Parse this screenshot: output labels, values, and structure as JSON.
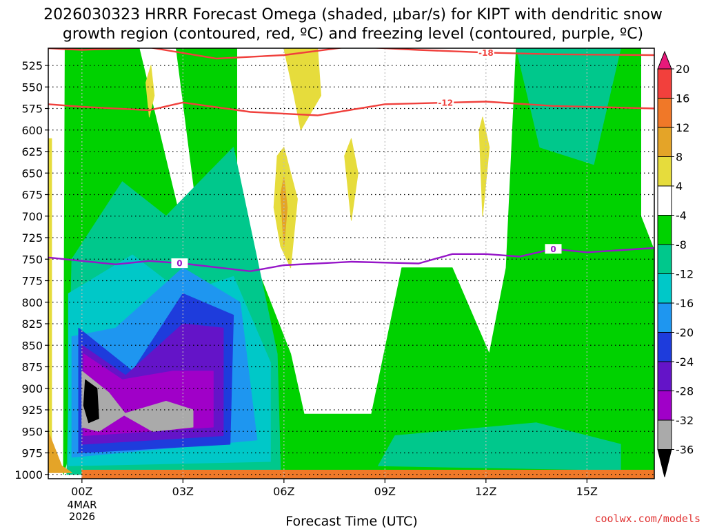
{
  "chart_data": {
    "type": "heatmap",
    "title_line1": "2026030323 HRRR Forecast Omega (shaded, μbar/s) for KIPT with dendritic snow",
    "title_line2": "growth region (contoured, red, ºC) and freezing level (contoured, purple, ºC)",
    "xlabel": "Forecast Time (UTC)",
    "xlim": [
      -1,
      17
    ],
    "x_ticks": [
      0,
      3,
      6,
      9,
      12,
      15
    ],
    "x_tick_labels": [
      "00Z",
      "03Z",
      "06Z",
      "09Z",
      "12Z",
      "15Z"
    ],
    "date_label_line1": "4MAR",
    "date_label_line2": "2026",
    "ylim": [
      1005,
      505
    ],
    "y_ticks": [
      525,
      550,
      575,
      600,
      625,
      650,
      675,
      700,
      725,
      750,
      775,
      800,
      825,
      850,
      875,
      900,
      925,
      950,
      975,
      1000
    ],
    "y_tick_labels": [
      "525",
      "550",
      "575",
      "600",
      "625",
      "650",
      "675",
      "700",
      "725",
      "750",
      "775",
      "800",
      "825",
      "850",
      "875",
      "900",
      "925",
      "950",
      "975",
      "1000"
    ],
    "colorbar": {
      "labels": [
        "20",
        "16",
        "12",
        "8",
        "4",
        "-4",
        "-8",
        "-12",
        "-16",
        "-20",
        "-24",
        "-28",
        "-32",
        "-36"
      ],
      "bins": [
        {
          "lo": 20,
          "hi": 999,
          "color": "#e8197a"
        },
        {
          "lo": 16,
          "hi": 20,
          "color": "#f2403c"
        },
        {
          "lo": 12,
          "hi": 16,
          "color": "#f07828"
        },
        {
          "lo": 8,
          "hi": 12,
          "color": "#e4a428"
        },
        {
          "lo": 4,
          "hi": 8,
          "color": "#e6dc3c"
        },
        {
          "lo": -4,
          "hi": 4,
          "color": "#ffffff"
        },
        {
          "lo": -8,
          "hi": -4,
          "color": "#00d200"
        },
        {
          "lo": -12,
          "hi": -8,
          "color": "#00c88c"
        },
        {
          "lo": -16,
          "hi": -12,
          "color": "#00c8c8"
        },
        {
          "lo": -20,
          "hi": -16,
          "color": "#1e96f0"
        },
        {
          "lo": -24,
          "hi": -20,
          "color": "#1e3cdc"
        },
        {
          "lo": -28,
          "hi": -24,
          "color": "#6414c8"
        },
        {
          "lo": -32,
          "hi": -28,
          "color": "#a000c8"
        },
        {
          "lo": -36,
          "hi": -32,
          "color": "#aaaaaa"
        },
        {
          "lo": -999,
          "hi": -36,
          "color": "#000000"
        }
      ]
    },
    "omega_features": [
      {
        "name": "green-band-left",
        "value": -6,
        "polygon": [
          [
            -0.5,
            505
          ],
          [
            1.7,
            505
          ],
          [
            2.9,
            700
          ],
          [
            2.3,
            740
          ],
          [
            1.5,
            700
          ],
          [
            0.4,
            870
          ],
          [
            -0.55,
            1000
          ]
        ]
      },
      {
        "name": "green-band-mid",
        "value": -6,
        "polygon": [
          [
            2.8,
            505
          ],
          [
            4.6,
            505
          ],
          [
            4.6,
            700
          ],
          [
            6.2,
            860
          ],
          [
            6.6,
            930
          ],
          [
            8.6,
            930
          ],
          [
            9.5,
            760
          ],
          [
            11.0,
            760
          ],
          [
            12.1,
            860
          ],
          [
            12.6,
            760
          ],
          [
            12.9,
            505
          ],
          [
            16.6,
            505
          ],
          [
            16.6,
            700
          ],
          [
            17,
            740
          ],
          [
            17,
            1000
          ],
          [
            6.0,
            1000
          ],
          [
            4.0,
            950
          ],
          [
            3.5,
            720
          ]
        ]
      },
      {
        "name": "green-lower-right",
        "value": -6,
        "polygon": [
          [
            6.0,
            995
          ],
          [
            9.5,
            930
          ],
          [
            13,
            925
          ],
          [
            17,
            760
          ],
          [
            17,
            1000
          ]
        ]
      },
      {
        "name": "teal-left",
        "value": -10,
        "polygon": [
          [
            -0.3,
            750
          ],
          [
            1.2,
            660
          ],
          [
            2.5,
            700
          ],
          [
            4.5,
            620
          ],
          [
            5.8,
            860
          ],
          [
            5.9,
            1000
          ],
          [
            -0.45,
            1000
          ]
        ]
      },
      {
        "name": "teal-lower-right",
        "value": -10,
        "polygon": [
          [
            8.8,
            990
          ],
          [
            9.3,
            955
          ],
          [
            13.5,
            940
          ],
          [
            16.0,
            965
          ],
          [
            16,
            995
          ]
        ]
      },
      {
        "name": "teal-top-right",
        "value": -10,
        "polygon": [
          [
            12.9,
            505
          ],
          [
            16.0,
            505
          ],
          [
            15.2,
            640
          ],
          [
            13.6,
            620
          ]
        ]
      },
      {
        "name": "cyan-left",
        "value": -14,
        "polygon": [
          [
            -0.4,
            790
          ],
          [
            1.5,
            745
          ],
          [
            3.0,
            790
          ],
          [
            4.5,
            770
          ],
          [
            5.6,
            870
          ],
          [
            5.6,
            985
          ],
          [
            -0.4,
            990
          ]
        ]
      },
      {
        "name": "lightblue-left",
        "value": -18,
        "polygon": [
          [
            -0.3,
            840
          ],
          [
            1.0,
            830
          ],
          [
            3.0,
            760
          ],
          [
            4.7,
            800
          ],
          [
            5.2,
            960
          ],
          [
            -0.3,
            980
          ]
        ]
      },
      {
        "name": "blue-core",
        "value": -22,
        "polygon": [
          [
            -0.1,
            830
          ],
          [
            1.5,
            880
          ],
          [
            3.0,
            790
          ],
          [
            4.5,
            815
          ],
          [
            4.4,
            965
          ],
          [
            -0.1,
            975
          ]
        ]
      },
      {
        "name": "purple-core",
        "value": -26,
        "polygon": [
          [
            0.0,
            850
          ],
          [
            1.3,
            885
          ],
          [
            3.0,
            825
          ],
          [
            4.2,
            830
          ],
          [
            4.2,
            955
          ],
          [
            0.0,
            965
          ]
        ]
      },
      {
        "name": "magenta-core",
        "value": -30,
        "polygon": [
          [
            0.05,
            860
          ],
          [
            1.2,
            890
          ],
          [
            2.7,
            880
          ],
          [
            3.9,
            880
          ],
          [
            3.9,
            945
          ],
          [
            0.05,
            955
          ]
        ]
      },
      {
        "name": "gray-core",
        "value": -34,
        "polygon": [
          [
            0.0,
            880
          ],
          [
            0.8,
            905
          ],
          [
            1.3,
            930
          ],
          [
            0.5,
            950
          ],
          [
            0.0,
            945
          ]
        ]
      },
      {
        "name": "gray-right",
        "value": -34,
        "polygon": [
          [
            1.2,
            930
          ],
          [
            2.5,
            915
          ],
          [
            3.3,
            925
          ],
          [
            3.3,
            945
          ],
          [
            2.1,
            950
          ]
        ]
      },
      {
        "name": "black-core",
        "value": -40,
        "polygon": [
          [
            0.1,
            890
          ],
          [
            0.45,
            900
          ],
          [
            0.5,
            935
          ],
          [
            0.2,
            940
          ],
          [
            0.05,
            920
          ]
        ]
      },
      {
        "name": "yellow-1",
        "value": 5,
        "polygon": [
          [
            1.9,
            545
          ],
          [
            2.05,
            525
          ],
          [
            2.15,
            560
          ],
          [
            2.0,
            585
          ]
        ]
      },
      {
        "name": "yellow-2",
        "value": 5,
        "polygon": [
          [
            6.0,
            505
          ],
          [
            7.0,
            505
          ],
          [
            7.1,
            560
          ],
          [
            6.5,
            600
          ],
          [
            6.3,
            560
          ]
        ]
      },
      {
        "name": "yellow-3",
        "value": 5,
        "polygon": [
          [
            5.7,
            690
          ],
          [
            5.8,
            630
          ],
          [
            6.0,
            620
          ],
          [
            6.4,
            680
          ],
          [
            6.2,
            760
          ],
          [
            5.9,
            735
          ]
        ]
      },
      {
        "name": "yellow-4",
        "value": 5,
        "polygon": [
          [
            7.8,
            630
          ],
          [
            8.0,
            610
          ],
          [
            8.2,
            650
          ],
          [
            8.0,
            705
          ]
        ]
      },
      {
        "name": "yellow-5",
        "value": 5,
        "polygon": [
          [
            11.8,
            600
          ],
          [
            11.9,
            585
          ],
          [
            12.1,
            620
          ],
          [
            11.9,
            700
          ]
        ]
      },
      {
        "name": "orange-core",
        "value": 10,
        "polygon": [
          [
            5.9,
            675
          ],
          [
            6.0,
            655
          ],
          [
            6.1,
            690
          ],
          [
            6.0,
            735
          ]
        ]
      },
      {
        "name": "yellow-left-strip",
        "value": 5,
        "polygon": [
          [
            -1,
            610
          ],
          [
            -0.9,
            610
          ],
          [
            -0.9,
            985
          ],
          [
            -1,
            985
          ]
        ]
      },
      {
        "name": "orange-corner",
        "value": 10,
        "polygon": [
          [
            -1,
            950
          ],
          [
            -0.6,
            990
          ],
          [
            -0.3,
            998
          ],
          [
            -1,
            998
          ]
        ]
      },
      {
        "name": "surface-strip",
        "value": 12,
        "polygon": [
          [
            0,
            995
          ],
          [
            17,
            995
          ],
          [
            17,
            1005
          ],
          [
            0,
            1005
          ]
        ]
      }
    ],
    "series": [
      {
        "name": "-18 ºC isotherm",
        "color": "#f0403c",
        "label": "-18",
        "label_x": 12.0,
        "x": [
          -1,
          0,
          2,
          4,
          6,
          8,
          10,
          12,
          14,
          17
        ],
        "y": [
          505,
          507,
          504,
          517,
          513,
          503,
          507,
          510,
          512,
          513
        ]
      },
      {
        "name": "-12 ºC isotherm",
        "color": "#f0403c",
        "label": "-12",
        "label_x": 10.8,
        "x": [
          -1,
          0,
          2,
          3,
          5,
          7,
          9,
          12,
          14,
          17
        ],
        "y": [
          570,
          573,
          577,
          568,
          579,
          583,
          570,
          567,
          572,
          575
        ]
      },
      {
        "name": "0 ºC isotherm",
        "color": "#9616c8",
        "label": "0",
        "label_x": 2.9,
        "label_x2": 14.0,
        "x": [
          -1,
          0,
          1,
          2,
          3,
          5,
          6,
          8,
          10,
          11,
          12,
          13,
          14,
          15,
          17
        ],
        "y": [
          748,
          752,
          756,
          752,
          755,
          764,
          757,
          753,
          755,
          744,
          744,
          747,
          738,
          742,
          737
        ]
      }
    ]
  },
  "credit": "coolwx.com/models"
}
